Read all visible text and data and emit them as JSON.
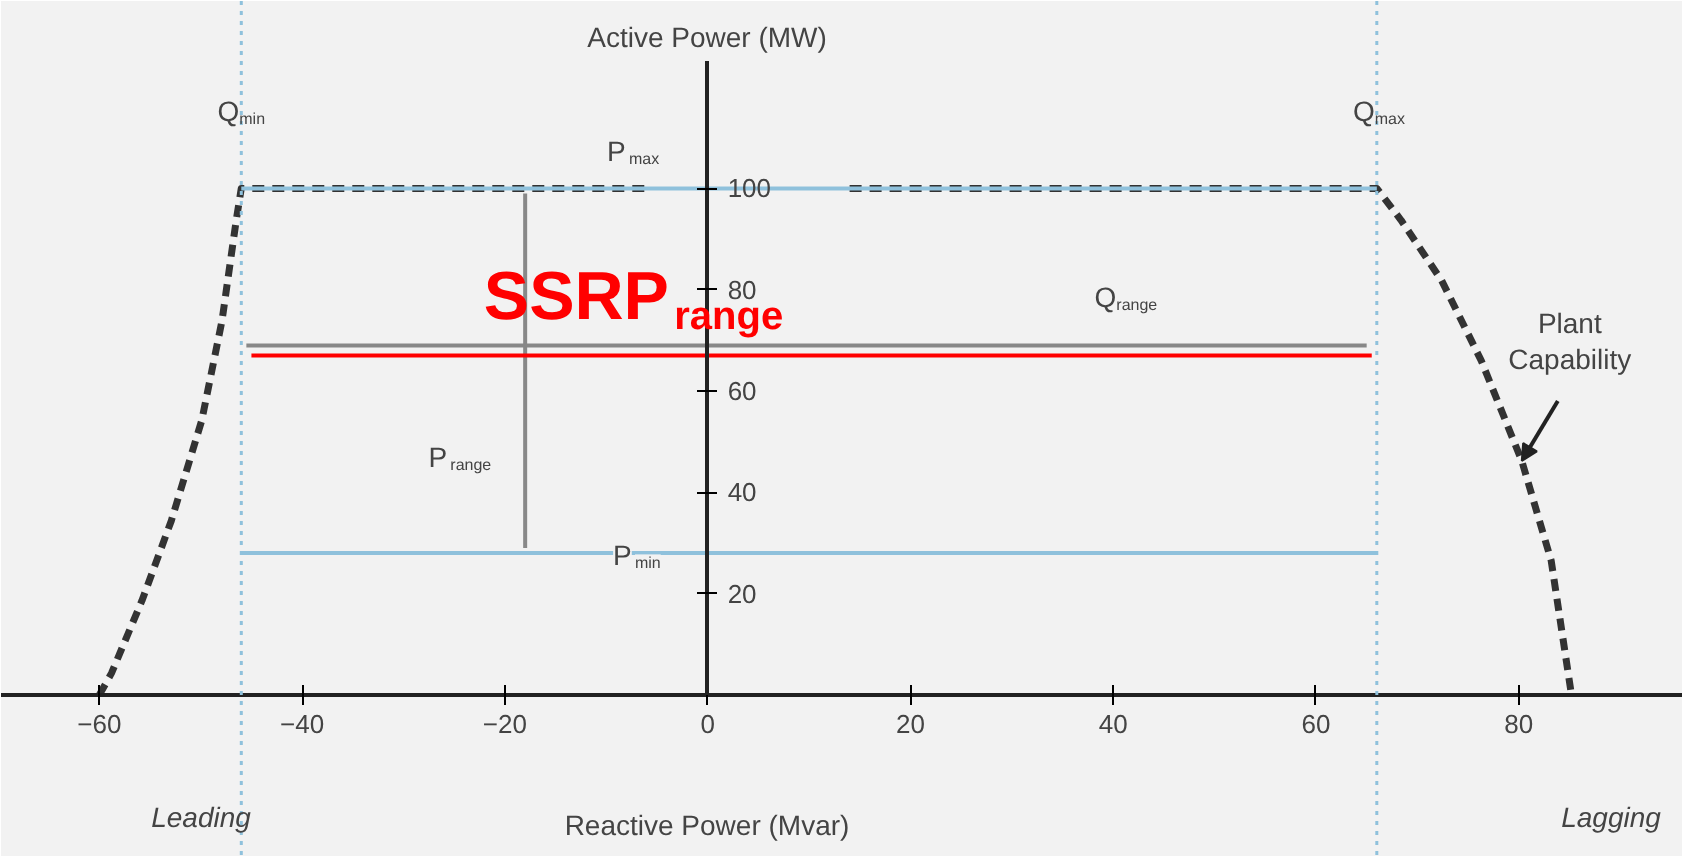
{
  "chart_data": {
    "type": "line",
    "xlabel": "Reactive Power (Mvar)",
    "ylabel": "Active Power (MW)",
    "xlim": [
      -69.7,
      96.2
    ],
    "ylim": [
      -32,
      137
    ],
    "xticks": [
      -60,
      -40,
      -20,
      0,
      20,
      40,
      60,
      80
    ],
    "yticks": [
      20,
      40,
      60,
      80,
      100
    ],
    "grid": false,
    "marker": "none",
    "series": [
      {
        "color": "#333333",
        "line_style": "dashed",
        "x": [
          -60,
          -58.8,
          -55.8,
          -52.9,
          -49.9,
          -47.9,
          -46.5,
          -46,
          -6,
          4,
          14,
          66,
          68.4,
          72.4,
          76.3,
          80.3,
          83.2,
          85.2
        ],
        "values": [
          0,
          4.3,
          18.6,
          34.4,
          54.2,
          73.9,
          93.7,
          100,
          100,
          null,
          100,
          100,
          93.7,
          81.8,
          66,
          46.2,
          26.5,
          0
        ]
      },
      {
        "color": "#8fc1dc",
        "line_style": "solid",
        "x": [
          -46,
          66
        ],
        "values": [
          100,
          100
        ]
      },
      {
        "color": "#8fc1dc",
        "line_style": "solid",
        "x": [
          -46,
          66
        ],
        "values": [
          28,
          28
        ]
      },
      {
        "color": "#888888",
        "line_style": "solid",
        "x": [
          -18,
          -18
        ],
        "values": [
          99,
          29
        ]
      },
      {
        "color": "#888888",
        "line_style": "solid",
        "x": [
          -45.5,
          65
        ],
        "values": [
          69,
          69
        ]
      },
      {
        "color": "#ff0000",
        "line_style": "solid",
        "x": [
          -45,
          65.5
        ],
        "values": [
          67,
          67
        ]
      }
    ],
    "ref_lines": [
      {
        "axis": "x",
        "value": -46,
        "label": "Q$_{min}$",
        "color": "#8fc1dc",
        "line_style": "dotted"
      },
      {
        "axis": "x",
        "value": 66,
        "label": "Q$_{max}$",
        "color": "#8fc1dc",
        "line_style": "dotted"
      }
    ],
    "annotations": [
      "P$_{max}$",
      "P$_{min}$",
      "P$_{range}$",
      "Q$_{range}$",
      "SSRP$_{range}$",
      {
        "text": "Plant Capability",
        "x": 80.3,
        "y": 46.2
      },
      "Leading",
      "Lagging"
    ]
  }
}
